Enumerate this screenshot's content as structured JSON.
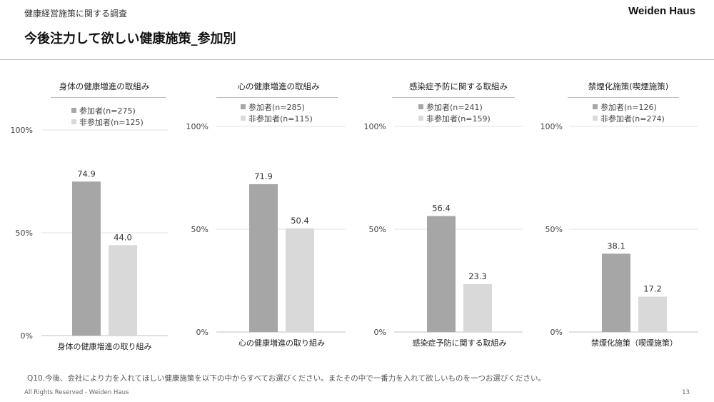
{
  "header": {
    "subtitle": "健康経営施策に関する調査",
    "title": "今後注力して欲しい健康施策_参加別",
    "brand": "Weiden Haus"
  },
  "colors": {
    "participant": "#a6a6a6",
    "nonparticipant": "#d9d9d9"
  },
  "footer": {
    "question": "Q10.今後、会社により力を入れてほしい健康施策を以下の中からすべてお選びください。またその中で一番力を入れて欲しいものを一つお選びください。",
    "copyright": "All Rights Reserved - Weiden Haus",
    "page": "13"
  },
  "chart_data": [
    {
      "type": "bar",
      "title": "身体の健康増進の取組み",
      "categories": [
        "身体の健康増進の取り組み"
      ],
      "series": [
        {
          "name": "参加者(n=275)",
          "values": [
            74.9
          ]
        },
        {
          "name": "非参加者(n=125)",
          "values": [
            44.0
          ]
        }
      ],
      "value_labels": [
        "74.9",
        "44.0"
      ],
      "ylim": [
        0,
        100
      ],
      "yticks": [
        "0%",
        "50%",
        "100%"
      ],
      "legend": "top"
    },
    {
      "type": "bar",
      "title": "心の健康増進の取組み",
      "categories": [
        "心の健康増進の取り組み"
      ],
      "series": [
        {
          "name": "参加者(n=285)",
          "values": [
            71.9
          ]
        },
        {
          "name": "非参加者(n=115)",
          "values": [
            50.4
          ]
        }
      ],
      "value_labels": [
        "71.9",
        "50.4"
      ],
      "ylim": [
        0,
        100
      ],
      "yticks": [
        "0%",
        "50%",
        "100%"
      ],
      "legend": "top"
    },
    {
      "type": "bar",
      "title": "感染症予防に関する取組み",
      "categories": [
        "感染症予防に関する取組み"
      ],
      "series": [
        {
          "name": "参加者(n=241)",
          "values": [
            56.4
          ]
        },
        {
          "name": "非参加者(n=159)",
          "values": [
            23.3
          ]
        }
      ],
      "value_labels": [
        "56.4",
        "23.3"
      ],
      "ylim": [
        0,
        100
      ],
      "yticks": [
        "0%",
        "50%",
        "100%"
      ],
      "legend": "top"
    },
    {
      "type": "bar",
      "title": "禁煙化施策(喫煙施策)",
      "categories": [
        "禁煙化施策（喫煙施策）"
      ],
      "series": [
        {
          "name": "参加者(n=126)",
          "values": [
            38.1
          ]
        },
        {
          "name": "非参加者(n=274)",
          "values": [
            17.2
          ]
        }
      ],
      "value_labels": [
        "38.1",
        "17.2"
      ],
      "ylim": [
        0,
        100
      ],
      "yticks": [
        "0%",
        "50%",
        "100%"
      ],
      "legend": "top"
    }
  ]
}
